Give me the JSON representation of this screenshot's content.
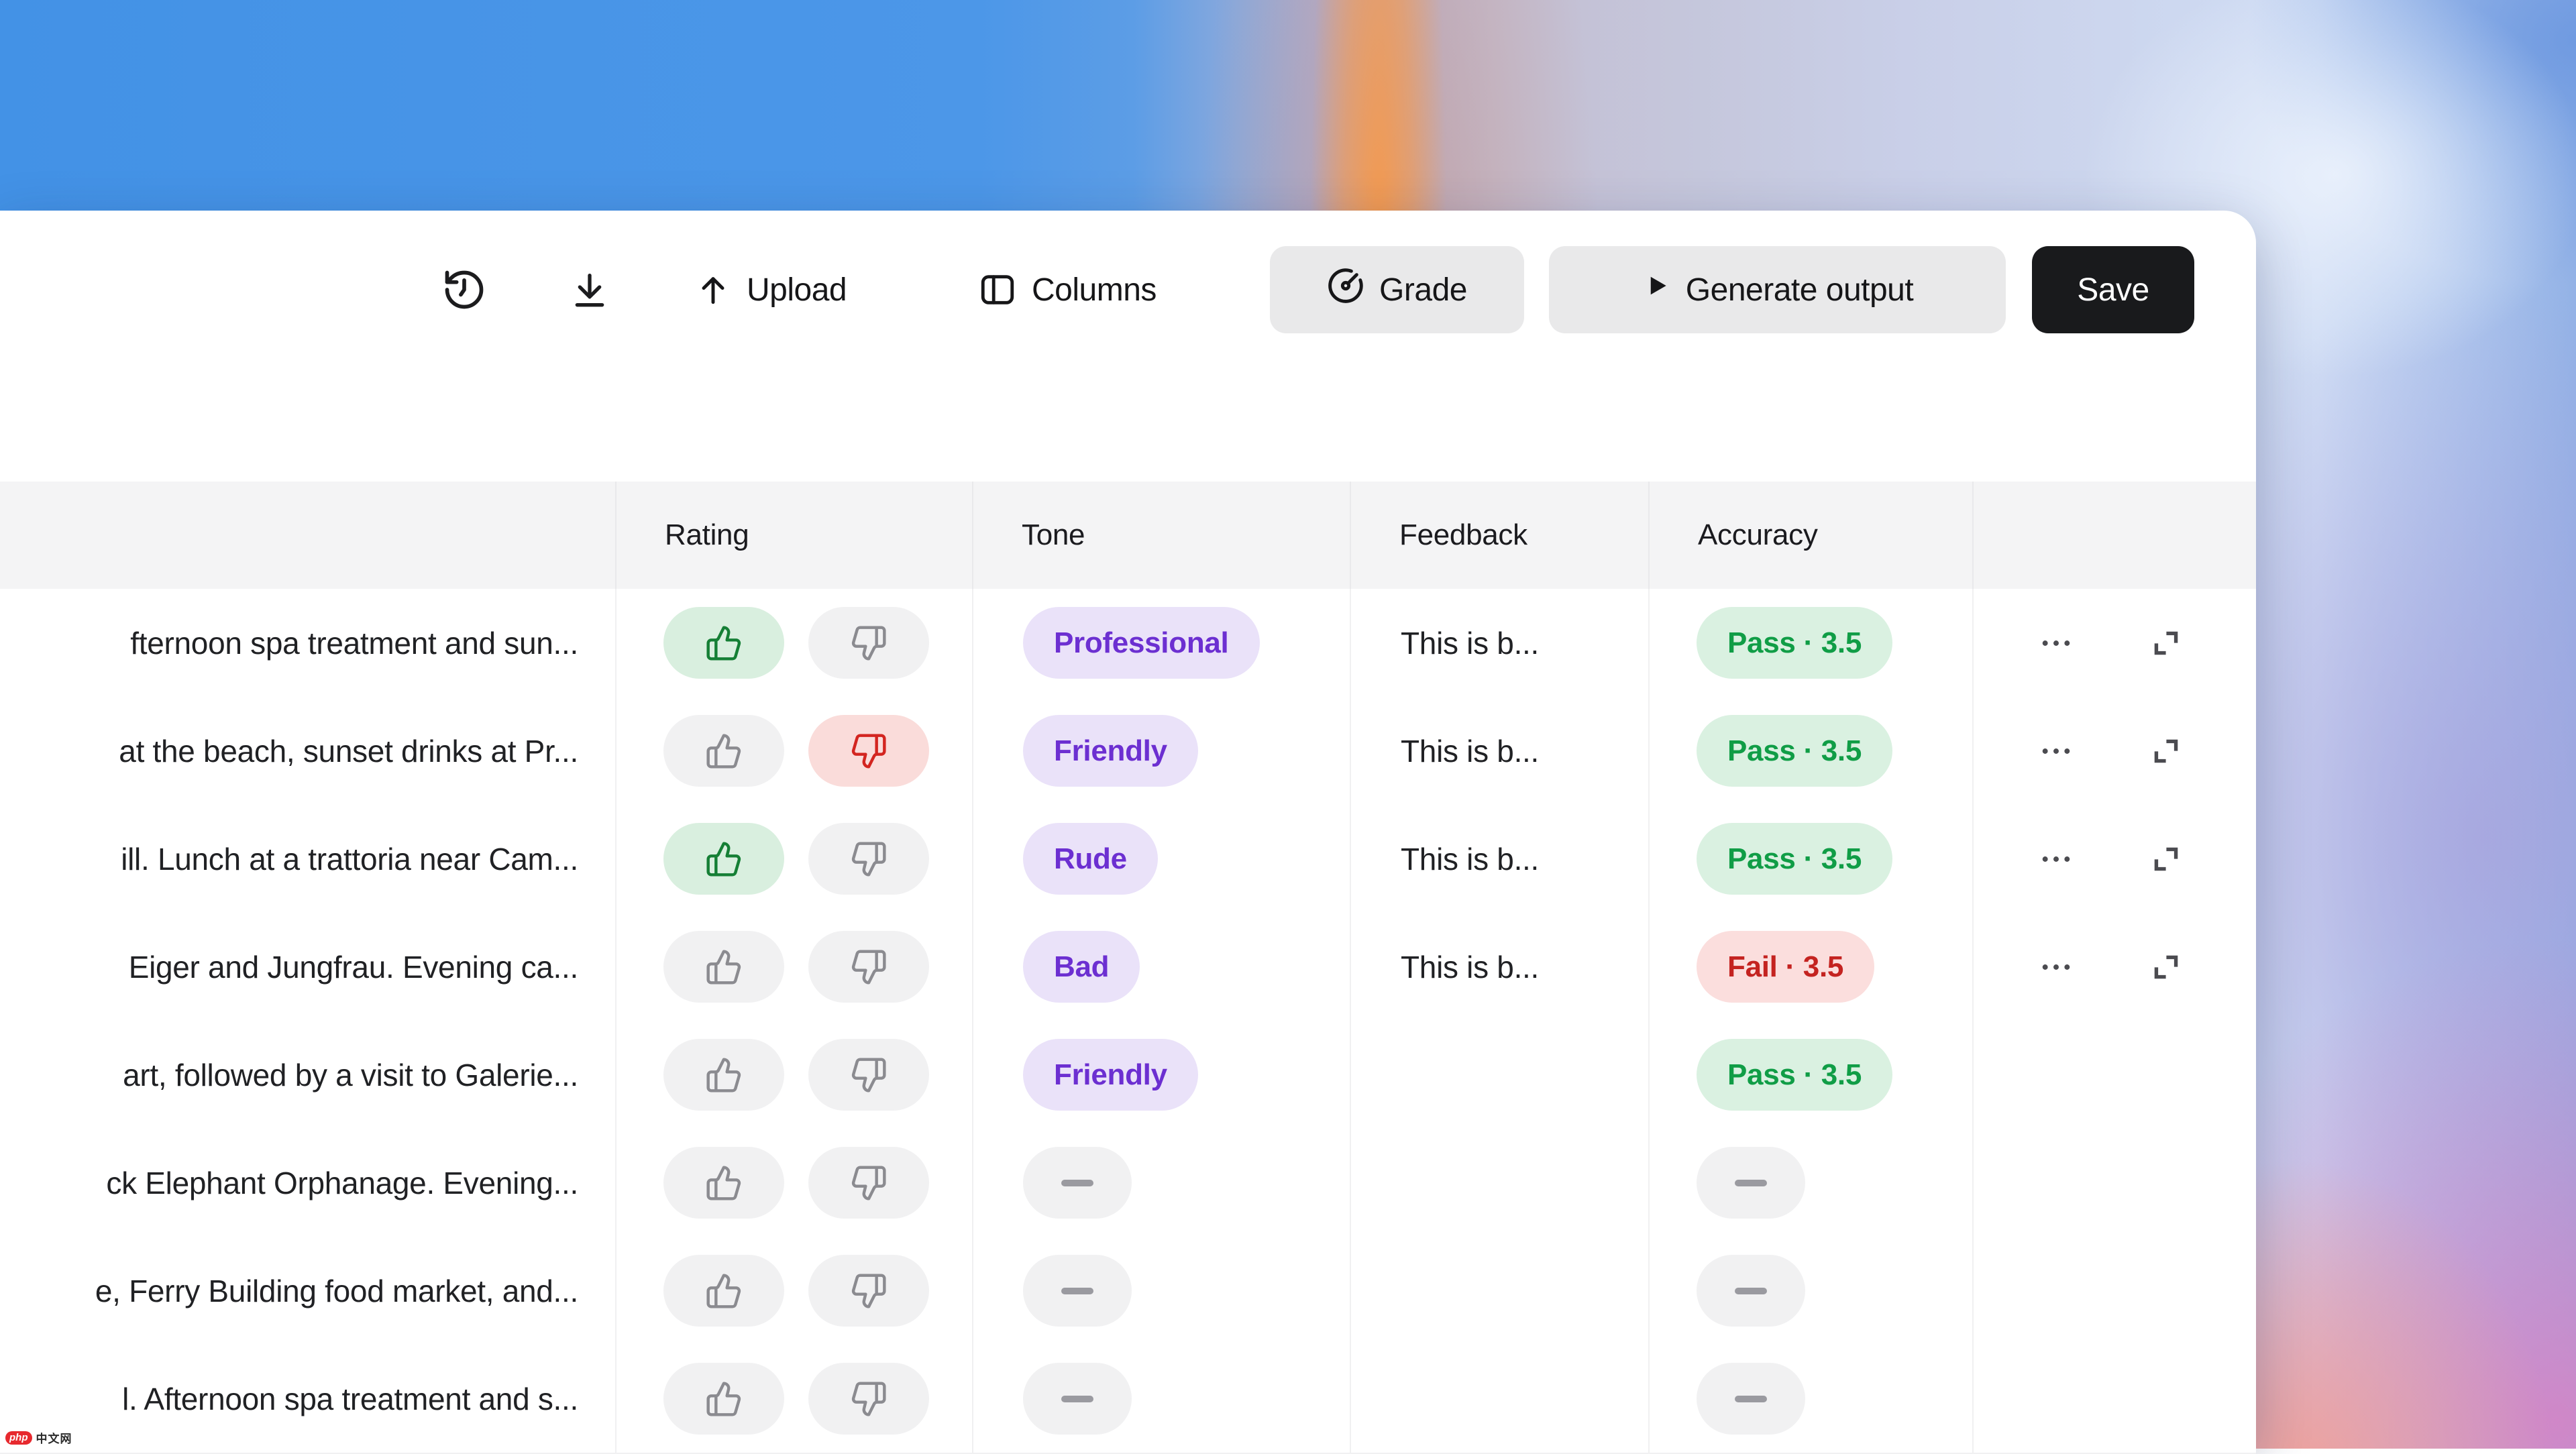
{
  "toolbar": {
    "upload_label": "Upload",
    "columns_label": "Columns",
    "grade_label": "Grade",
    "generate_label": "Generate output",
    "save_label": "Save"
  },
  "table": {
    "columns": [
      {
        "key": "input",
        "label": ""
      },
      {
        "key": "rating",
        "label": "Rating"
      },
      {
        "key": "tone",
        "label": "Tone"
      },
      {
        "key": "feedback",
        "label": "Feedback"
      },
      {
        "key": "accuracy",
        "label": "Accuracy"
      },
      {
        "key": "actions",
        "label": ""
      }
    ],
    "rows": [
      {
        "input": "fternoon spa treatment and sun...",
        "rating": "up",
        "tone": "Professional",
        "feedback": "This is b...",
        "accuracy": {
          "label": "Pass · 3.5",
          "status": "pass"
        },
        "has_actions": true
      },
      {
        "input": "at the beach, sunset drinks at Pr...",
        "rating": "down",
        "tone": "Friendly",
        "feedback": "This is b...",
        "accuracy": {
          "label": "Pass · 3.5",
          "status": "pass"
        },
        "has_actions": true
      },
      {
        "input": "ill. Lunch at a trattoria near Cam...",
        "rating": "up",
        "tone": "Rude",
        "feedback": "This is b...",
        "accuracy": {
          "label": "Pass · 3.5",
          "status": "pass"
        },
        "has_actions": true
      },
      {
        "input": "Eiger and Jungfrau. Evening ca...",
        "rating": null,
        "tone": "Bad",
        "feedback": "This is b...",
        "accuracy": {
          "label": "Fail · 3.5",
          "status": "fail"
        },
        "has_actions": true
      },
      {
        "input": "art, followed by a visit to Galerie...",
        "rating": null,
        "tone": "Friendly",
        "feedback": null,
        "accuracy": {
          "label": "Pass · 3.5",
          "status": "pass"
        },
        "has_actions": false
      },
      {
        "input": "ck Elephant Orphanage. Evening...",
        "rating": null,
        "tone": null,
        "feedback": null,
        "accuracy": null,
        "has_actions": false
      },
      {
        "input": "e, Ferry Building food market, and...",
        "rating": null,
        "tone": null,
        "feedback": null,
        "accuracy": null,
        "has_actions": false
      },
      {
        "input": "l. Afternoon spa treatment and s...",
        "rating": null,
        "tone": null,
        "feedback": null,
        "accuracy": null,
        "has_actions": false
      }
    ]
  },
  "watermark": {
    "badge": "php",
    "text": "中文网"
  },
  "colors": {
    "purple_text": "#6c2fd1",
    "purple_bg": "#eae2f9",
    "green_text": "#109d46",
    "green_bg": "#daf1e1",
    "red_text": "#c42320",
    "red_bg": "#fbdedd",
    "thumb_up_green": "#157f35",
    "thumb_up_bg": "#d9efdf",
    "thumb_down_red": "#d32520",
    "thumb_down_bg": "#fadcda",
    "neutral_pill_bg": "#f1f1f2",
    "toolbar_button_bg": "#e9e9ea",
    "save_button_bg": "#191a1c"
  }
}
